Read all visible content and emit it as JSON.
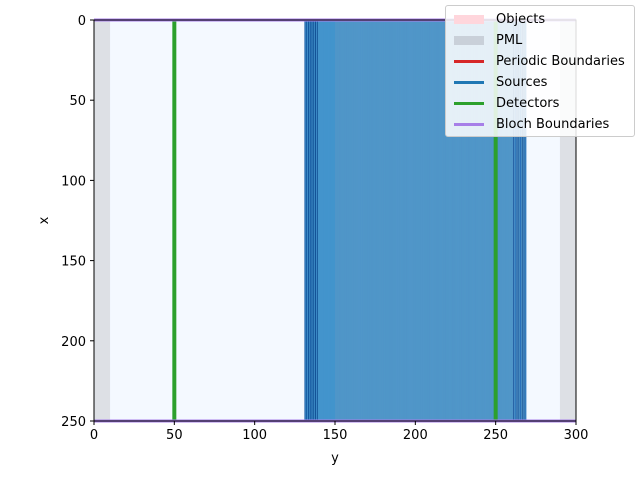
{
  "chart_data": {
    "type": "heatmap",
    "title": "",
    "xlabel": "y",
    "ylabel": "x",
    "xlim": [
      0,
      300
    ],
    "ylim": [
      250,
      0
    ],
    "xticks": [
      "0",
      "50",
      "100",
      "150",
      "200",
      "250",
      "300"
    ],
    "yticks": [
      "0",
      "50",
      "100",
      "150",
      "200",
      "250"
    ],
    "legend_placement": "top-right",
    "legend": [
      {
        "label": "Objects",
        "color": "#ffd6dc",
        "kind": "patch"
      },
      {
        "label": "PML",
        "color": "#c9d0d9",
        "kind": "patch"
      },
      {
        "label": "Periodic Boundaries",
        "color": "#d62728",
        "kind": "line"
      },
      {
        "label": "Sources",
        "color": "#1f77b4",
        "kind": "line"
      },
      {
        "label": "Detectors",
        "color": "#2ca02c",
        "kind": "line"
      },
      {
        "label": "Bloch Boundaries",
        "color": "#a77fe8",
        "kind": "line"
      }
    ],
    "pml": {
      "left": [
        0,
        10
      ],
      "right": [
        290,
        300
      ],
      "color": "#dde0e5"
    },
    "field_region": {
      "y_start": 131,
      "y_end": 269,
      "color": "#4394cd",
      "background": "#f4f9ff"
    },
    "objects_region": {
      "y_start": 150,
      "y_end": 300,
      "color": "#ffd6dc"
    },
    "detectors": [
      {
        "y": 50
      },
      {
        "y": 250
      }
    ],
    "bloch_boundaries": [
      {
        "x": 0
      },
      {
        "x": 250
      }
    ]
  }
}
